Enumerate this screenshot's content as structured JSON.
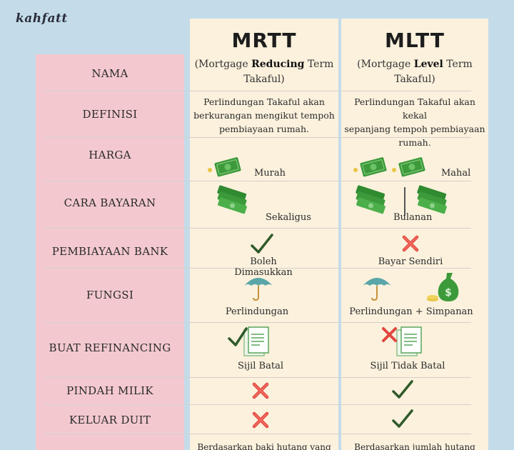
{
  "brand": "kahfatt",
  "columns": {
    "mrtt": {
      "title": "MRTT",
      "subtitle_pre": "(Mortgage ",
      "subtitle_bold": "Reducing",
      "subtitle_post": " Term",
      "subtitle_line2": "Takaful)"
    },
    "mltt": {
      "title": "MLTT",
      "subtitle_pre": "(Mortgage ",
      "subtitle_bold": "Level",
      "subtitle_post": " Term",
      "subtitle_line2": "Takaful)"
    }
  },
  "rows": {
    "nama": "NAMA",
    "definisi": "DEFINISI",
    "harga": "HARGA",
    "cara_bayaran": "CARA BAYARAN",
    "pembiayaan_bank": "PEMBIAYAAN BANK",
    "fungsi": "FUNGSI",
    "buat_refinancing": "BUAT REFINANCING",
    "pindah_milik": "PINDAH MILIK",
    "keluar_duit": "KELUAR DUIT"
  },
  "mrtt": {
    "definisi_1": "Perlindungan Takaful akan",
    "definisi_2": "berkurangan mengikut tempoh",
    "definisi_3": "pembiayaan rumah.",
    "harga": "Murah",
    "cara_bayaran": "Sekaligus",
    "pembiayaan_bank": "Boleh Dimasukkan",
    "fungsi": "Perlindungan",
    "refinancing": "Sijil Batal",
    "last_row": "Berdasarkan baki hutang yang"
  },
  "mltt": {
    "definisi_1": "Perlindungan Takaful akan kekal",
    "definisi_2": "sepanjang tempoh pembiayaan",
    "definisi_3": "rumah.",
    "harga": "Mahal",
    "cara_bayaran": "Bulanan",
    "pembiayaan_bank": "Bayar Sendiri",
    "fungsi": "Perlindungan + Simpanan",
    "refinancing": "Sijil Tidak Batal",
    "last_row": "Berdasarkan jumlah hutang"
  },
  "colors": {
    "background": "#c4dcea",
    "left_panel": "#f3c9cf",
    "column_panel": "#fbf1dd",
    "check": "#2f5a2a",
    "cross": "#e0473f",
    "money": "#3c9a3a",
    "umbrella": "#5aa6a8"
  },
  "icons": [
    "money-note-icon",
    "money-stack-icon",
    "check-icon",
    "cross-icon",
    "umbrella-icon",
    "money-bag-icon",
    "document-icon"
  ]
}
